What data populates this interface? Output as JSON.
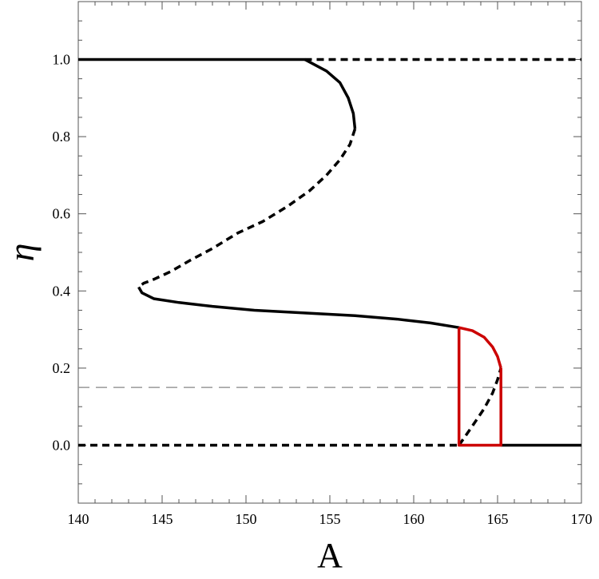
{
  "chart_data": {
    "type": "line",
    "xlabel": "A",
    "ylabel": "η",
    "xlim": [
      140,
      170
    ],
    "ylim": [
      -0.15,
      1.15
    ],
    "x_ticks": [
      "140",
      "145",
      "150",
      "155",
      "160",
      "165",
      "170"
    ],
    "y_ticks": [
      "0.0",
      "0.2",
      "0.4",
      "0.6",
      "0.8",
      "1.0"
    ],
    "grid": false,
    "legend": "none",
    "colors": {
      "stable": "#000000",
      "unstable": "#000000",
      "cycle": "#cc0000",
      "reference": "#999999"
    },
    "series": [
      {
        "style": "solid-black",
        "x": [
          140,
          153.5
        ],
        "y": [
          1.0,
          1.0
        ]
      },
      {
        "style": "dashed-black",
        "x": [
          153.5,
          170
        ],
        "y": [
          1.0,
          1.0
        ]
      },
      {
        "style": "solid-black",
        "x": [
          153.5,
          154.8,
          155.6,
          156.1,
          156.4,
          156.5
        ],
        "y": [
          1.0,
          0.97,
          0.94,
          0.9,
          0.86,
          0.82
        ]
      },
      {
        "style": "dashed-black",
        "x": [
          156.5,
          156.2,
          155.6,
          154.8,
          153.8,
          152.5,
          151.0,
          149.5,
          148.0,
          146.7,
          145.5,
          144.5,
          143.9,
          143.6
        ],
        "y": [
          0.82,
          0.78,
          0.74,
          0.7,
          0.66,
          0.62,
          0.58,
          0.55,
          0.51,
          0.48,
          0.45,
          0.43,
          0.42,
          0.41
        ]
      },
      {
        "style": "solid-black",
        "x": [
          143.6,
          143.8,
          144.5,
          146.0,
          148.0,
          150.5,
          153.5,
          156.5,
          159.0,
          161.0,
          162.7
        ],
        "y": [
          0.41,
          0.395,
          0.38,
          0.37,
          0.36,
          0.35,
          0.343,
          0.336,
          0.327,
          0.317,
          0.305
        ]
      },
      {
        "style": "solid-red",
        "x": [
          162.7,
          163.5,
          164.2,
          164.7,
          165.0,
          165.2
        ],
        "y": [
          0.305,
          0.297,
          0.28,
          0.255,
          0.23,
          0.2
        ]
      },
      {
        "style": "dashed-black",
        "x": [
          162.7,
          163.5,
          164.2,
          164.7,
          165.0,
          165.2
        ],
        "y": [
          0.0,
          0.05,
          0.095,
          0.135,
          0.17,
          0.2
        ]
      },
      {
        "style": "dashed-black",
        "x": [
          140,
          162.7
        ],
        "y": [
          0.0,
          0.0
        ]
      },
      {
        "style": "solid-black",
        "x": [
          165.2,
          170
        ],
        "y": [
          0.0,
          0.0
        ]
      },
      {
        "style": "solid-red",
        "x": [
          162.7,
          162.7,
          165.2,
          165.2
        ],
        "y": [
          0.305,
          0.0,
          0.0,
          0.2
        ]
      },
      {
        "style": "thin-gray-dashed",
        "x": [
          140,
          170
        ],
        "y": [
          0.15,
          0.15
        ]
      }
    ]
  }
}
